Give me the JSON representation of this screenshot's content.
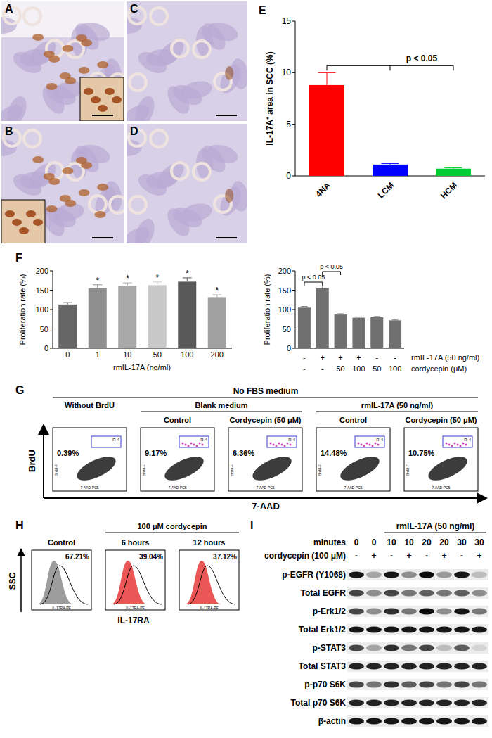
{
  "panels": [
    "A",
    "B",
    "C",
    "D",
    "E",
    "F",
    "G",
    "H",
    "I"
  ],
  "chart_data": [
    {
      "type": "bar",
      "categories": [
        "4NA",
        "LCM",
        "HCM"
      ],
      "values": [
        8.8,
        1.1,
        0.7
      ],
      "errors": [
        1.2,
        0.1,
        0.08
      ],
      "colors": [
        "#ff0000",
        "#0000ff",
        "#00cc33"
      ],
      "ylabel": "IL-17A⁺ area in SCC (%)",
      "ylim": [
        0,
        15
      ],
      "yticks": [
        0,
        5,
        10,
        15
      ],
      "annotations": [
        "p < 0.05"
      ]
    },
    {
      "type": "bar",
      "categories": [
        "0",
        "1",
        "10",
        "50",
        "100",
        "200"
      ],
      "values": [
        113,
        155,
        161,
        163,
        172,
        132
      ],
      "errors": [
        5,
        9,
        8,
        8,
        10,
        6
      ],
      "colors": [
        "#666666",
        "#8f8f8f",
        "#a8a8a8",
        "#c8c8c8",
        "#595959",
        "#a0a0a0"
      ],
      "xlabel": "rmIL-17A (ng/ml)",
      "ylabel": "Proliferation rate (%)",
      "ylim": [
        0,
        200
      ],
      "yticks": [
        0,
        50,
        100,
        150,
        200
      ],
      "significance": [
        null,
        "*",
        "*",
        "*",
        "*",
        "*"
      ]
    },
    {
      "type": "bar",
      "categories": [
        null,
        null,
        null,
        null,
        null,
        null
      ],
      "values": [
        105,
        155,
        87,
        79,
        80,
        72
      ],
      "errors": [
        3,
        6,
        2,
        2,
        2,
        1
      ],
      "color": "#707070",
      "ylabel": "Proliferation rate (%)",
      "ylim": [
        0,
        200
      ],
      "yticks": [
        0,
        50,
        100,
        150,
        200
      ],
      "rows": [
        {
          "label": "rmIL-17A (50 ng/ml)",
          "values": [
            "-",
            "+",
            "+",
            "+",
            "-",
            "-"
          ]
        },
        {
          "label": "cordycepin (μM)",
          "values": [
            "-",
            "-",
            "50",
            "100",
            "50",
            "100"
          ]
        }
      ],
      "annotations": [
        "p < 0.05",
        "p < 0.05"
      ]
    }
  ],
  "flow_G": {
    "header": "No FBS medium",
    "groups": [
      {
        "label": "Without BrdU",
        "plots": [
          {
            "value": "0.39%"
          }
        ]
      },
      {
        "label": "Blank medium",
        "plots": [
          {
            "label": "Control",
            "value": "9.17%"
          },
          {
            "label": "Cordycepin (50 μM)",
            "value": "6.36%"
          }
        ]
      },
      {
        "label": "rmIL-17A (50 ng/ml)",
        "plots": [
          {
            "label": "Control",
            "value": "14.48%"
          },
          {
            "label": "Cordycepin (50 μM)",
            "value": "10.75%"
          }
        ]
      }
    ],
    "y_axis": "BrdU",
    "x_axis": "7-AAD",
    "gate": "R-4",
    "plot_y_axis": "BrdU-F",
    "plot_x_axis": "7-AAD-PC5"
  },
  "flow_H": {
    "treatment": "100 μM cordycepin",
    "plots": [
      {
        "label": "Control",
        "value": "67.21%"
      },
      {
        "label": "6 hours",
        "value": "39.04%"
      },
      {
        "label": "12 hours",
        "value": "37.12%"
      }
    ],
    "y_axis": "SSC",
    "x_axis": "IL-17RA",
    "plot_x_axis": "IL-17RA-PE"
  },
  "blot_I": {
    "treatment": "rmIL-17A (50 ng/ml)",
    "header_rows": [
      {
        "label": "minutes",
        "values": [
          "0",
          "0",
          "10",
          "10",
          "20",
          "20",
          "30",
          "30"
        ]
      },
      {
        "label": "cordycepin (100 μM)",
        "values": [
          "-",
          "+",
          "-",
          "+",
          "-",
          "+",
          "-",
          "+"
        ]
      }
    ],
    "bands": [
      {
        "label": "p-EGFR (Y1068)",
        "intensity": [
          0.9,
          0.3,
          0.9,
          0.4,
          0.95,
          0.35,
          0.9,
          0.2
        ]
      },
      {
        "label": "Total EGFR",
        "intensity": [
          0.7,
          0.4,
          0.7,
          0.5,
          0.6,
          0.5,
          0.6,
          0.4
        ]
      },
      {
        "label": "p-Erk1/2",
        "intensity": [
          0.7,
          0.4,
          0.8,
          0.5,
          0.95,
          0.4,
          0.9,
          0.5
        ]
      },
      {
        "label": "Total Erk1/2",
        "intensity": [
          0.9,
          0.9,
          0.9,
          0.9,
          0.9,
          0.9,
          0.9,
          0.9
        ]
      },
      {
        "label": "p-STAT3",
        "intensity": [
          0.7,
          0.3,
          0.8,
          0.5,
          0.7,
          0.2,
          0.6,
          0.1
        ]
      },
      {
        "label": "Total STAT3",
        "intensity": [
          0.85,
          0.85,
          0.85,
          0.85,
          0.85,
          0.85,
          0.85,
          0.85
        ]
      },
      {
        "label": "p-p70 S6K",
        "intensity": [
          0.7,
          0.5,
          0.8,
          0.6,
          0.7,
          0.5,
          0.7,
          0.5
        ]
      },
      {
        "label": "Total p70 S6K",
        "intensity": [
          0.85,
          0.85,
          0.85,
          0.85,
          0.85,
          0.85,
          0.85,
          0.85
        ]
      },
      {
        "label": "β-actin",
        "intensity": [
          0.9,
          0.9,
          0.9,
          0.9,
          0.9,
          0.9,
          0.9,
          0.9
        ]
      }
    ]
  }
}
